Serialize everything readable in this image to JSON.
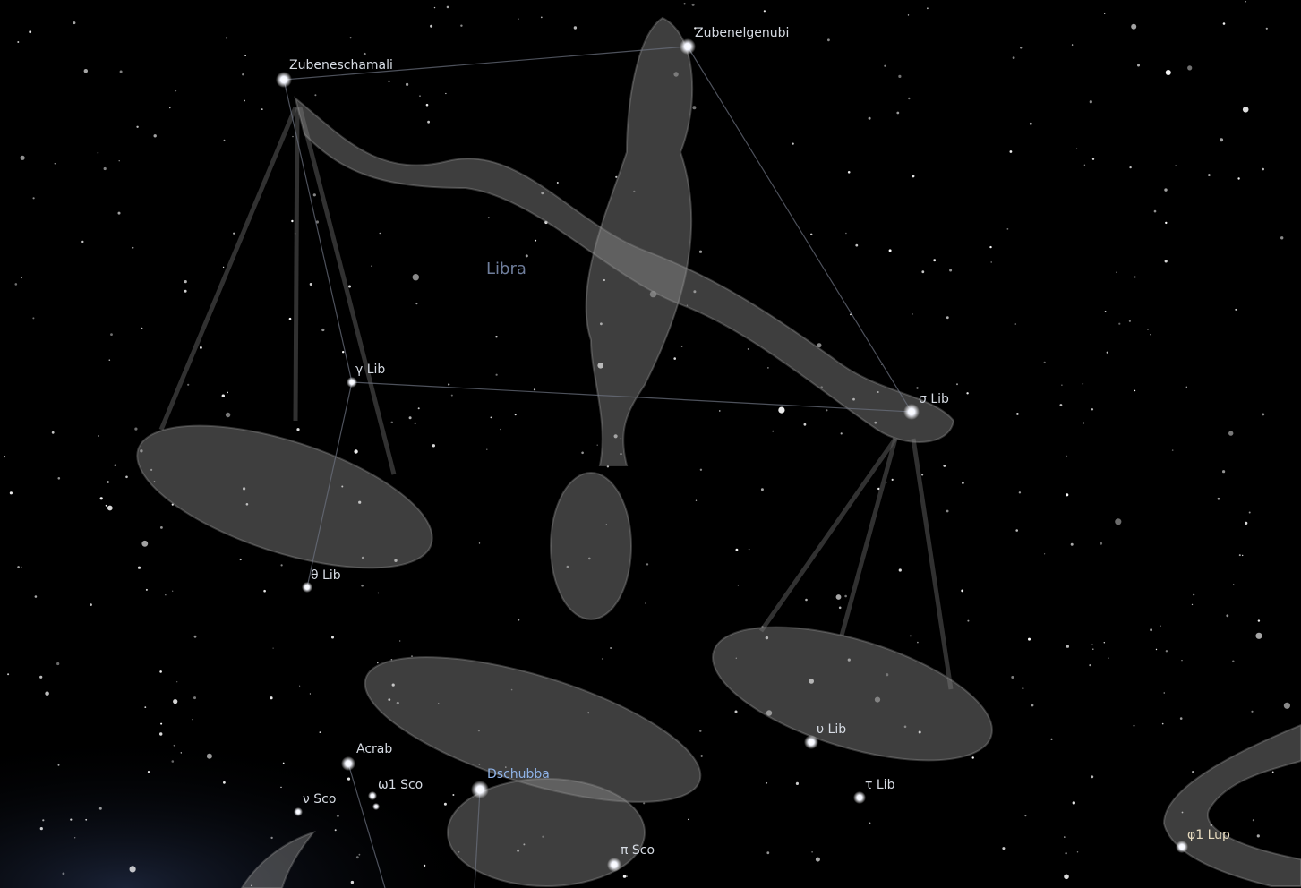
{
  "constellation": {
    "name": "Libra"
  },
  "stars": [
    {
      "label": "Zubeneschamali"
    },
    {
      "label": "Zubenelgenubi"
    },
    {
      "label": "γ Lib"
    },
    {
      "label": "σ Lib"
    },
    {
      "label": "θ Lib"
    },
    {
      "label": "υ Lib"
    },
    {
      "label": "τ Lib"
    },
    {
      "label": "Acrab"
    },
    {
      "label": "ω1 Sco"
    },
    {
      "label": "ν Sco"
    },
    {
      "label": "Dschubba"
    },
    {
      "label": "π Sco"
    },
    {
      "label": "φ1 Lup"
    }
  ]
}
